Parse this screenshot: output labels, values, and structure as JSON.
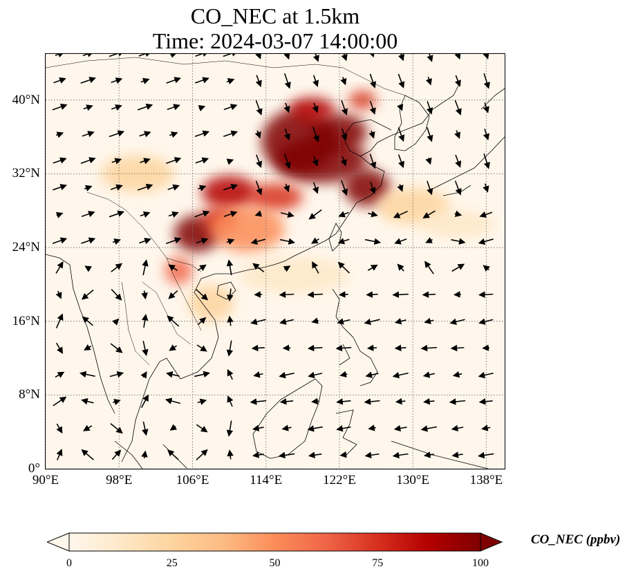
{
  "title_line1": "CO_NEC at 1.5km",
  "title_line2": "Time: 2024-03-07 14:00:00",
  "map": {
    "lon_range": [
      90,
      140
    ],
    "lat_range": [
      0,
      45
    ],
    "lat_ticks": [
      {
        "value": 0,
        "label": "0°"
      },
      {
        "value": 8,
        "label": "8°N"
      },
      {
        "value": 16,
        "label": "16°N"
      },
      {
        "value": 24,
        "label": "24°N"
      },
      {
        "value": 32,
        "label": "32°N"
      },
      {
        "value": 40,
        "label": "40°N"
      }
    ],
    "lon_ticks": [
      {
        "value": 90,
        "label": "90°E"
      },
      {
        "value": 98,
        "label": "98°E"
      },
      {
        "value": 106,
        "label": "106°E"
      },
      {
        "value": 114,
        "label": "114°E"
      },
      {
        "value": 122,
        "label": "122°E"
      },
      {
        "value": 130,
        "label": "130°E"
      },
      {
        "value": 138,
        "label": "138°E"
      }
    ],
    "gridlines": true,
    "plumes": [
      {
        "lon": 117.5,
        "lat": 35.5,
        "rx": 4.0,
        "ry": 3.5,
        "value": 100
      },
      {
        "lon": 122.0,
        "lat": 36.5,
        "rx": 3.0,
        "ry": 2.0,
        "value": 100
      },
      {
        "lon": 120.0,
        "lat": 33.5,
        "rx": 5.0,
        "ry": 2.5,
        "value": 100
      },
      {
        "lon": 125.0,
        "lat": 30.5,
        "rx": 2.5,
        "ry": 2.0,
        "value": 95
      },
      {
        "lon": 110.0,
        "lat": 30.0,
        "rx": 3.0,
        "ry": 1.8,
        "value": 85
      },
      {
        "lon": 106.5,
        "lat": 25.5,
        "rx": 2.5,
        "ry": 2.0,
        "value": 100
      },
      {
        "lon": 109.0,
        "lat": 27.0,
        "rx": 2.0,
        "ry": 1.5,
        "value": 80
      },
      {
        "lon": 115.0,
        "lat": 29.5,
        "rx": 3.0,
        "ry": 1.5,
        "value": 75
      },
      {
        "lon": 119.0,
        "lat": 39.0,
        "rx": 2.5,
        "ry": 1.3,
        "value": 90
      },
      {
        "lon": 124.5,
        "lat": 40.0,
        "rx": 1.5,
        "ry": 1.0,
        "value": 70
      },
      {
        "lon": 104.5,
        "lat": 21.5,
        "rx": 1.5,
        "ry": 1.5,
        "value": 60
      },
      {
        "lon": 100.0,
        "lat": 32.0,
        "rx": 4.0,
        "ry": 2.0,
        "value": 30
      },
      {
        "lon": 112.0,
        "lat": 26.0,
        "rx": 4.0,
        "ry": 2.5,
        "value": 45
      },
      {
        "lon": 130.0,
        "lat": 28.5,
        "rx": 4.0,
        "ry": 2.0,
        "value": 25
      },
      {
        "lon": 117.0,
        "lat": 21.0,
        "rx": 6.0,
        "ry": 2.0,
        "value": 15
      },
      {
        "lon": 108.0,
        "lat": 18.0,
        "rx": 2.5,
        "ry": 2.0,
        "value": 25
      },
      {
        "lon": 135.0,
        "lat": 26.5,
        "rx": 4.0,
        "ry": 1.5,
        "value": 12
      }
    ]
  },
  "colorbar": {
    "min": 0,
    "max": 100,
    "extend": "both",
    "tick_labels": [
      "0",
      "25",
      "50",
      "75",
      "100"
    ],
    "label": "CO_NEC (ppbv)",
    "colors": [
      "#fff7ec",
      "#fee8c8",
      "#fdd49e",
      "#fdbb84",
      "#fc8d59",
      "#ef6548",
      "#d7301f",
      "#b30000",
      "#7f0000"
    ]
  }
}
